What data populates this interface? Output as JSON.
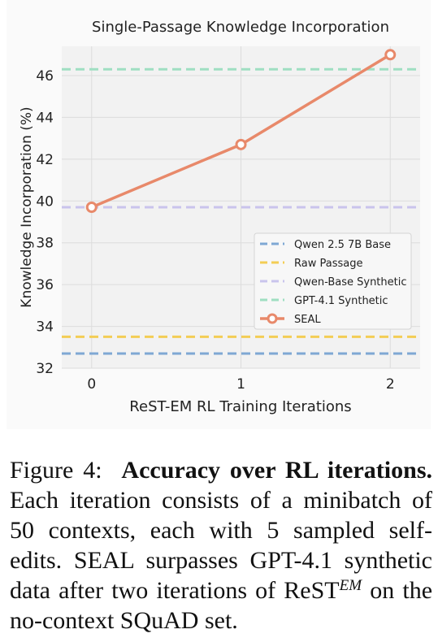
{
  "chart_data": {
    "type": "line",
    "title": "Single-Passage Knowledge Incorporation",
    "xlabel": "ReST-EM RL Training Iterations",
    "ylabel": "Knowledge Incorporation (%)",
    "x_ticks": [
      0,
      1,
      2
    ],
    "y_ticks": [
      32,
      34,
      36,
      38,
      40,
      42,
      44,
      46
    ],
    "xlim": [
      -0.2,
      2.2
    ],
    "ylim": [
      32,
      47.4
    ],
    "grid": true,
    "legend_position": "center-right",
    "baselines": [
      {
        "name": "Qwen 2.5 7B Base",
        "value": 32.7,
        "color": "#7fa8d4"
      },
      {
        "name": "Raw Passage",
        "value": 33.5,
        "color": "#f3cd55"
      },
      {
        "name": "Qwen-Base Synthetic",
        "value": 39.7,
        "color": "#c9c4ec"
      },
      {
        "name": "GPT-4.1 Synthetic",
        "value": 46.3,
        "color": "#9fdfc2"
      }
    ],
    "series": [
      {
        "name": "SEAL",
        "x": [
          0,
          1,
          2
        ],
        "values": [
          39.7,
          42.7,
          47.0
        ],
        "color": "#e8896a"
      }
    ]
  },
  "caption": {
    "label": "Figure 4:",
    "bold": "Accuracy over RL iterations.",
    "text1": "Each iteration consists of a minibatch of 50 contexts, each with 5 sampled self-edits. SEAL surpasses GPT-4.1 synthetic data after two iterations of ReST",
    "sup": "EM",
    "text2": "on the no-context SQuAD set."
  }
}
